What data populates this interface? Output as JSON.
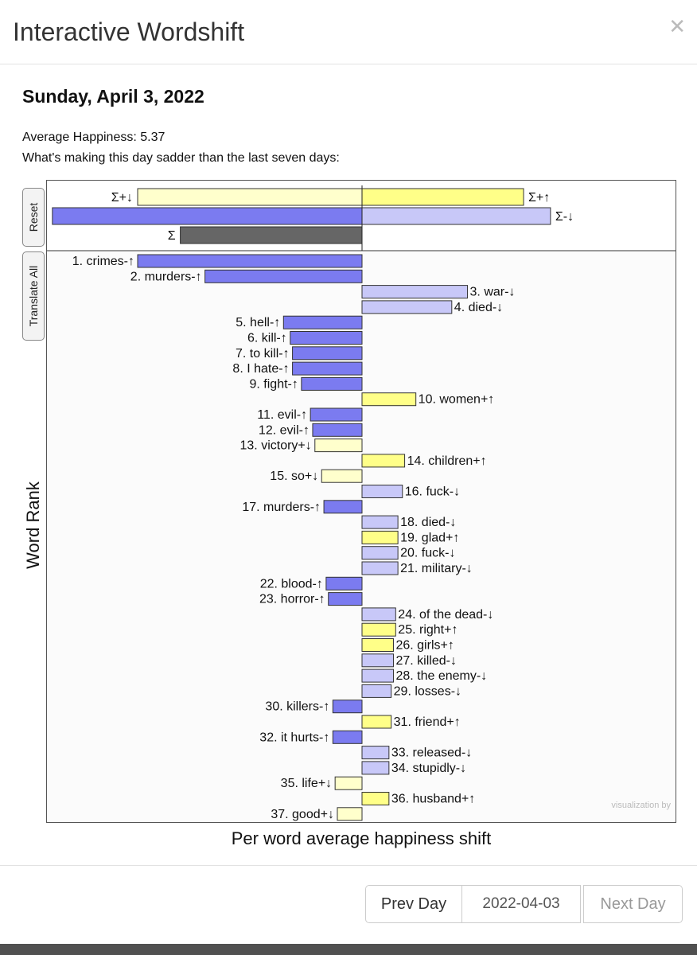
{
  "modal": {
    "title": "Interactive Wordshift",
    "close_icon": "close-icon"
  },
  "date_heading": "Sunday, April 3, 2022",
  "average_happiness": "Average Happiness: 5.37",
  "subtitle": "What's making this day sadder than the last seven days:",
  "buttons": {
    "reset": "Reset",
    "translate_all": "Translate All",
    "prev_day": "Prev Day",
    "date_value": "2022-04-03",
    "next_day": "Next Day"
  },
  "credit": "visualization by",
  "colors": {
    "neg_up": "#7b7bf0",
    "neg_down": "#c8c8f8",
    "pos_up": "#ffff88",
    "pos_down": "#ffffcc",
    "sum": "#666666"
  },
  "chart_data": {
    "type": "bar",
    "xlabel": "Per word average happiness shift",
    "ylabel": "Word Rank",
    "summary": [
      {
        "label": "Σ+↓",
        "value": -1.0,
        "kind": "pos_down"
      },
      {
        "label": "Σ+↑",
        "value": 0.72,
        "kind": "pos_up"
      },
      {
        "label": "Σ-↑",
        "value": -1.38,
        "kind": "neg_up"
      },
      {
        "label": "Σ-↓",
        "value": 0.84,
        "kind": "neg_down"
      },
      {
        "label": "Σ",
        "value": -0.81,
        "kind": "sum"
      }
    ],
    "words": [
      {
        "label": "1. crimes-↑",
        "value": -1.0,
        "kind": "neg_up"
      },
      {
        "label": "2. murders-↑",
        "value": -0.7,
        "kind": "neg_up"
      },
      {
        "label": "3. war-↓",
        "value": 0.47,
        "kind": "neg_down"
      },
      {
        "label": "4. died-↓",
        "value": 0.4,
        "kind": "neg_down"
      },
      {
        "label": "5. hell-↑",
        "value": -0.35,
        "kind": "neg_up"
      },
      {
        "label": "6. kill-↑",
        "value": -0.32,
        "kind": "neg_up"
      },
      {
        "label": "7. to kill-↑",
        "value": -0.31,
        "kind": "neg_up"
      },
      {
        "label": "8. I hate-↑",
        "value": -0.31,
        "kind": "neg_up"
      },
      {
        "label": "9. fight-↑",
        "value": -0.27,
        "kind": "neg_up"
      },
      {
        "label": "10. women+↑",
        "value": 0.24,
        "kind": "pos_up"
      },
      {
        "label": "11. evil-↑",
        "value": -0.23,
        "kind": "neg_up"
      },
      {
        "label": "12. evil-↑",
        "value": -0.22,
        "kind": "neg_up"
      },
      {
        "label": "13. victory+↓",
        "value": -0.21,
        "kind": "pos_down"
      },
      {
        "label": "14. children+↑",
        "value": 0.19,
        "kind": "pos_up"
      },
      {
        "label": "15. so+↓",
        "value": -0.18,
        "kind": "pos_down"
      },
      {
        "label": "16. fuck-↓",
        "value": 0.18,
        "kind": "neg_down"
      },
      {
        "label": "17. murders-↑",
        "value": -0.17,
        "kind": "neg_up"
      },
      {
        "label": "18. died-↓",
        "value": 0.16,
        "kind": "neg_down"
      },
      {
        "label": "19. glad+↑",
        "value": 0.16,
        "kind": "pos_up"
      },
      {
        "label": "20. fuck-↓",
        "value": 0.16,
        "kind": "neg_down"
      },
      {
        "label": "21. military-↓",
        "value": 0.16,
        "kind": "neg_down"
      },
      {
        "label": "22. blood-↑",
        "value": -0.16,
        "kind": "neg_up"
      },
      {
        "label": "23. horror-↑",
        "value": -0.15,
        "kind": "neg_up"
      },
      {
        "label": "24. of the dead-↓",
        "value": 0.15,
        "kind": "neg_down"
      },
      {
        "label": "25. right+↑",
        "value": 0.15,
        "kind": "pos_up"
      },
      {
        "label": "26. girls+↑",
        "value": 0.14,
        "kind": "pos_up"
      },
      {
        "label": "27. killed-↓",
        "value": 0.14,
        "kind": "neg_down"
      },
      {
        "label": "28. the enemy-↓",
        "value": 0.14,
        "kind": "neg_down"
      },
      {
        "label": "29. losses-↓",
        "value": 0.13,
        "kind": "neg_down"
      },
      {
        "label": "30. killers-↑",
        "value": -0.13,
        "kind": "neg_up"
      },
      {
        "label": "31. friend+↑",
        "value": 0.13,
        "kind": "pos_up"
      },
      {
        "label": "32. it hurts-↑",
        "value": -0.13,
        "kind": "neg_up"
      },
      {
        "label": "33. released-↓",
        "value": 0.12,
        "kind": "neg_down"
      },
      {
        "label": "34. stupidly-↓",
        "value": 0.12,
        "kind": "neg_down"
      },
      {
        "label": "35. life+↓",
        "value": -0.12,
        "kind": "pos_down"
      },
      {
        "label": "36. husband+↑",
        "value": 0.12,
        "kind": "pos_up"
      },
      {
        "label": "37. good+↓",
        "value": -0.11,
        "kind": "pos_down"
      }
    ]
  }
}
